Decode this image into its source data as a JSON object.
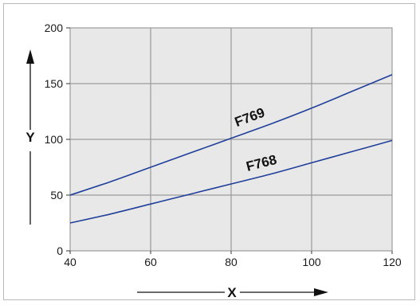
{
  "chart_data": {
    "type": "line",
    "xlabel": "X",
    "ylabel": "Y",
    "xlim": [
      40,
      120
    ],
    "ylim": [
      0,
      200
    ],
    "x_ticks": [
      "40",
      "60",
      "80",
      "100",
      "120"
    ],
    "y_ticks": [
      "0",
      "50",
      "100",
      "150",
      "200"
    ],
    "grid": true,
    "series": [
      {
        "name": "F769",
        "x": [
          40,
          50,
          60,
          70,
          80,
          90,
          100,
          110,
          120
        ],
        "values": [
          50,
          62,
          75,
          88,
          101,
          114,
          128,
          143,
          158
        ]
      },
      {
        "name": "F768",
        "x": [
          40,
          50,
          60,
          70,
          80,
          90,
          100,
          110,
          120
        ],
        "values": [
          25,
          33,
          42,
          51,
          60,
          69,
          79,
          89,
          99
        ]
      }
    ]
  },
  "colors": {
    "plot_background": "#e8e8e8",
    "gridline": "#9a9a9a",
    "series_line": "#1f3f9a",
    "frame_border": "#b9b9b9"
  }
}
